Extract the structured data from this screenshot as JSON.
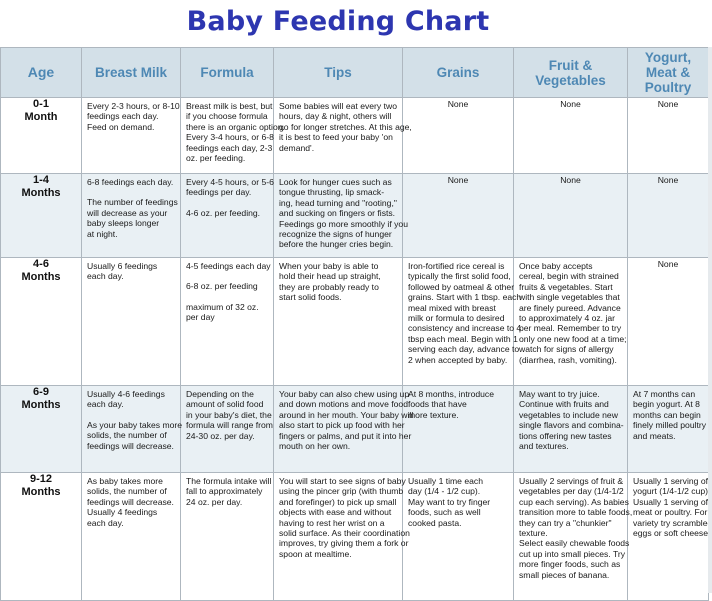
{
  "title": "Baby Feeding Chart",
  "headers": [
    "Age",
    "Breast Milk",
    "Formula",
    "Tips",
    "Grains",
    "Fruit & Vegetables",
    "Yogurt, Meat & Poultry"
  ],
  "rows": [
    {
      "age": [
        "0-1",
        "Month"
      ],
      "breast": [
        "Every 2-3 hours, or 8-10",
        "feedings each day.",
        "Feed on demand."
      ],
      "formula": [
        "Breast milk is best, but",
        "if you choose formula",
        "there is an organic option.",
        "Every 3-4 hours, or 6-8",
        "feedings each day, 2-3",
        "oz. per feeding."
      ],
      "tips": [
        "Some babies will eat every two",
        "hours, day & night, others will",
        "go for longer stretches. At this age,",
        "it is best to feed your baby 'on",
        "demand'."
      ],
      "grains": "None",
      "fruit": "None",
      "meat": "None"
    },
    {
      "age": [
        "1-4",
        "Months"
      ],
      "breast": [
        "6-8 feedings each day.",
        "",
        "The number of feedings",
        "will decrease as your",
        "baby sleeps longer",
        "at night."
      ],
      "formula": [
        "Every 4-5 hours, or 5-6",
        "feedings per day.",
        "",
        "4-6 oz. per feeding."
      ],
      "tips": [
        "Look for hunger cues such as",
        "tongue thrusting, lip smack-",
        "ing, head turning and \"rooting,\"",
        "and sucking on fingers or fists.",
        "Feedings go more smoothly if you",
        "recognize the signs of hunger",
        "before the hunger cries begin."
      ],
      "grains": "None",
      "fruit": "None",
      "meat": "None"
    },
    {
      "age": [
        "4-6",
        "Months"
      ],
      "breast": [
        "Usually 6 feedings",
        "each day."
      ],
      "formula": [
        "4-5 feedings each day",
        "",
        "6-8 oz. per feeding",
        "",
        "maximum of 32 oz.",
        "per day"
      ],
      "tips": [
        "When your baby is able to",
        "hold their head up straight,",
        "they are probably ready to",
        "start solid foods."
      ],
      "grains": [
        "Iron-fortified rice cereal is",
        "typically the first solid food,",
        "followed by oatmeal & other",
        "grains. Start with 1 tbsp. each",
        "meal mixed with breast",
        "milk or formula to desired",
        "consistency and increase to 4",
        "tbsp each meal. Begin with 1",
        "serving each day, advance to",
        "2 when accepted by baby."
      ],
      "fruit": [
        "Once baby accepts",
        "cereal, begin with strained",
        "fruits & vegetables. Start",
        "with single vegetables that",
        "are finely pureed. Advance",
        "to approximately 4 oz. jar",
        "per meal. Remember to try",
        "only one new food at a time;",
        "watch for signs of allergy",
        "(diarrhea, rash, vomiting)."
      ],
      "meat": "None"
    },
    {
      "age": [
        "6-9",
        "Months"
      ],
      "breast": [
        "Usually 4-6 feedings",
        "each day.",
        "",
        "As your baby takes more",
        "solids, the number of",
        "feedings will decrease."
      ],
      "formula": [
        "Depending on the",
        "amount of solid food",
        "in your baby's diet, the",
        "formula will range from",
        "24-30 oz. per day."
      ],
      "tips": [
        "Your baby can also chew using up",
        "and down motions and move food",
        "around in her mouth. Your baby will",
        "also start to pick up food with her",
        "fingers or palms, and put it into her",
        "mouth on her own."
      ],
      "grains": [
        "At 8 months, introduce",
        "foods that have",
        "more texture."
      ],
      "fruit": [
        "May want to try juice.",
        "Continue with fruits and",
        "vegetables to include new",
        "single flavors and combina-",
        "tions offering new tastes",
        "and textures."
      ],
      "meat": [
        "At 7 months can",
        "begin yogurt. At 8",
        "months can begin",
        "finely milled poultry",
        "and meats."
      ]
    },
    {
      "age": [
        "9-12",
        "Months"
      ],
      "breast": [
        "As baby takes more",
        "solids, the number of",
        "feedings will decrease.",
        "Usually 4 feedings",
        "each day."
      ],
      "formula": [
        "The formula intake will",
        "fall to approximately",
        "24 oz. per day."
      ],
      "tips": [
        "You will start to see signs of baby",
        "using the pincer grip (with thumb",
        "and forefinger) to pick up small",
        "objects with ease and without",
        "having to rest her wrist on a",
        "solid surface. As their coordination",
        "improves, try giving them a fork or",
        "spoon at mealtime."
      ],
      "grains": [
        "Usually 1 time each",
        "day (1/4 - 1/2 cup).",
        "May want to try finger",
        "foods, such as well",
        "cooked pasta."
      ],
      "fruit": [
        "Usually 2 servings of fruit &",
        "vegetables per day (1/4-1/2",
        "cup each serving). As babies",
        "transition more to table foods,",
        "they can try a \"chunkier\"",
        "texture.",
        "Select easily chewable foods",
        "cut up into small pieces. Try",
        "more finger foods, such as",
        "small pieces of banana."
      ],
      "meat": [
        "Usually 1 serving of",
        "yogurt (1/4-1/2 cup).",
        "Usually 1 serving of",
        "meat or poultry. For",
        "variety try scrambled",
        "eggs or soft cheese."
      ]
    }
  ]
}
